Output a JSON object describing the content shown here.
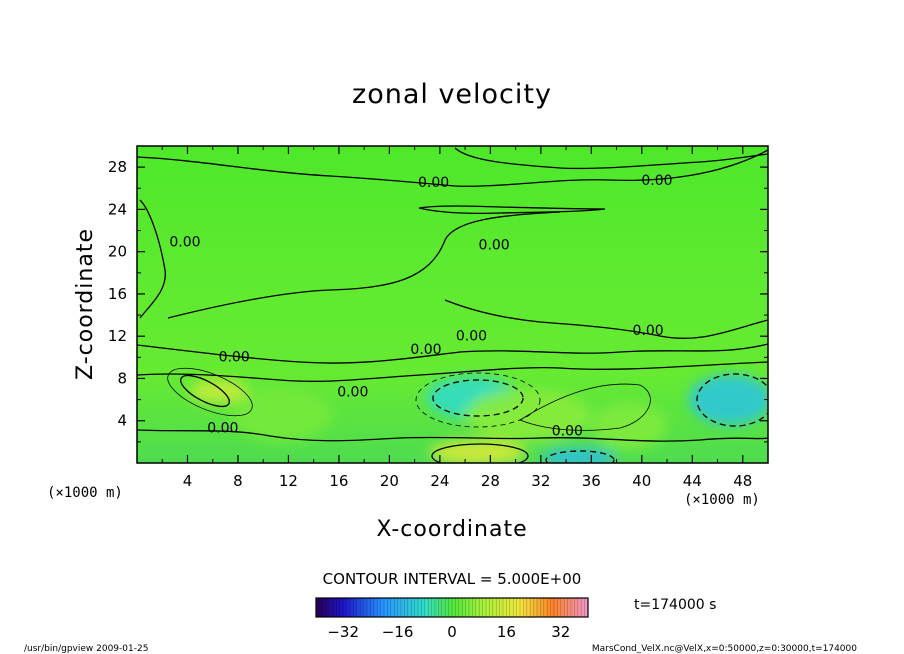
{
  "chart_data": {
    "type": "heatmap",
    "title": "zonal velocity",
    "xlabel": "X-coordinate",
    "ylabel": "Z-coordinate",
    "x_unit": "(×1000 m)",
    "z_unit": "(×1000 m)",
    "xlim": [
      0,
      50
    ],
    "ylim": [
      0,
      30
    ],
    "x_ticks": [
      4,
      8,
      12,
      16,
      20,
      24,
      28,
      32,
      36,
      40,
      44,
      48
    ],
    "y_ticks": [
      4,
      8,
      12,
      16,
      20,
      24,
      28
    ],
    "contour_interval_text": "CONTOUR INTERVAL = 5.000E+00",
    "contour_label": "0.00",
    "time_text": "t=174000 s",
    "colorbar": {
      "min": -40,
      "max": 40,
      "ticks": [
        -32,
        -16,
        0,
        16,
        32
      ]
    },
    "contour_labels": [
      {
        "x": 23.5,
        "y": 26.1
      },
      {
        "x": 41.2,
        "y": 26.3
      },
      {
        "x": 28.3,
        "y": 20.2
      },
      {
        "x": 3.8,
        "y": 20.5
      },
      {
        "x": 40.5,
        "y": 12.1
      },
      {
        "x": 26.5,
        "y": 11.6
      },
      {
        "x": 22.9,
        "y": 10.3
      },
      {
        "x": 7.7,
        "y": 9.6
      },
      {
        "x": 17.1,
        "y": 6.3
      },
      {
        "x": 6.8,
        "y": 2.9
      },
      {
        "x": 34.1,
        "y": 2.6
      }
    ],
    "features": [
      {
        "x": 6.5,
        "y": 6.8,
        "rx": 2.3,
        "ry": 1.1,
        "value": 14
      },
      {
        "x": 27.0,
        "y": 1.0,
        "rx": 3.8,
        "ry": 1.2,
        "value": 16
      },
      {
        "x": 35.0,
        "y": 0.5,
        "rx": 3.0,
        "ry": 0.9,
        "value": -13
      },
      {
        "x": 26.5,
        "y": 6.2,
        "rx": 3.6,
        "ry": 2.0,
        "value": -8
      },
      {
        "x": 47.0,
        "y": 6.0,
        "rx": 3.3,
        "ry": 2.4,
        "value": -12
      },
      {
        "x": 31.0,
        "y": 4.5,
        "rx": 5.0,
        "ry": 2.5,
        "value": 6
      },
      {
        "x": 39.0,
        "y": 3.5,
        "rx": 3.0,
        "ry": 2.2,
        "value": 5
      },
      {
        "x": 11.5,
        "y": 4.5,
        "rx": 4.0,
        "ry": 2.5,
        "value": 4
      }
    ]
  },
  "footer": {
    "left": "/usr/bin/gpview   2009-01-25",
    "right": "MarsCond_VelX.nc@VelX,x=0:50000,z=0:30000,t=174000"
  }
}
